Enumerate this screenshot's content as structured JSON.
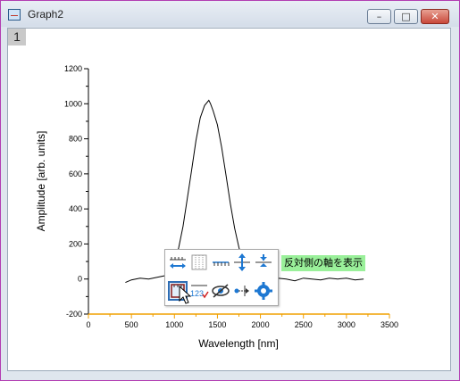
{
  "window": {
    "title": "Graph2",
    "minimize_icon": "minimize-icon",
    "maximize_icon": "maximize-icon",
    "close_icon": "close-icon"
  },
  "layer_tab": "1",
  "mini_toolbar": {
    "tooltip": "反対側の軸を表示",
    "buttons": [
      "axis-scale-icon",
      "grid-lines-icon",
      "tick-labels-icon",
      "axis-offset-icon",
      "axis-break-icon",
      "show-opposite-axis-icon",
      "tick-label-format-icon",
      "hide-axis-icon",
      "axis-reference-icon",
      "axis-settings-icon"
    ],
    "accent_color": "#1e78d2"
  },
  "chart_data": {
    "type": "line",
    "title": "",
    "xlabel": "Wavelength [nm]",
    "ylabel": "Amplitude [arb. units]",
    "xlim": [
      0,
      3500
    ],
    "ylim": [
      -200,
      1200
    ],
    "xticks": [
      0,
      500,
      1000,
      1500,
      2000,
      2500,
      3000,
      3500
    ],
    "yticks": [
      -200,
      0,
      200,
      400,
      600,
      800,
      1000,
      1200
    ],
    "x_axis_color": "#f0a000",
    "series": [
      {
        "color": "#000000",
        "x": [
          430,
          500,
          600,
          700,
          800,
          900,
          950,
          1000,
          1050,
          1100,
          1150,
          1200,
          1250,
          1300,
          1350,
          1400,
          1420,
          1450,
          1500,
          1550,
          1600,
          1650,
          1700,
          1750,
          1800,
          1850,
          1900,
          1950,
          2000,
          2100,
          2200,
          2300,
          2400,
          2500,
          2600,
          2700,
          2800,
          2900,
          3000,
          3100,
          3200
        ],
        "y": [
          -20,
          -5,
          5,
          0,
          10,
          20,
          40,
          80,
          180,
          300,
          460,
          620,
          790,
          920,
          990,
          1020,
          1000,
          960,
          880,
          750,
          590,
          430,
          290,
          180,
          90,
          40,
          10,
          0,
          -5,
          0,
          5,
          0,
          -10,
          5,
          0,
          -5,
          5,
          0,
          5,
          -5,
          0
        ]
      }
    ]
  }
}
